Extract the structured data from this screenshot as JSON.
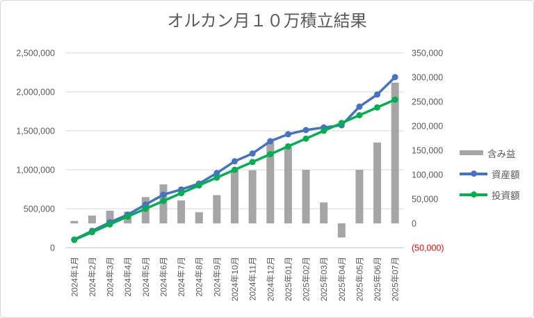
{
  "title": "オルカン月１０万積立結果",
  "chart_data": {
    "type": "combo",
    "title": "オルカン月１０万積立結果",
    "categories": [
      "2024年1月",
      "2024年2月",
      "2024年3月",
      "2024年4月",
      "2024年5月",
      "2024年6月",
      "2024年7月",
      "2024年8月",
      "2024年9月",
      "2024年10月",
      "2024年11月",
      "2024年12月",
      "2025年01月",
      "2025年02月",
      "2025年03月",
      "2025年04月",
      "2025年05月",
      "2025年06月",
      "2025年07月"
    ],
    "series": [
      {
        "name": "含み益",
        "type": "bar",
        "axis": "right",
        "color": "#a5a5a5",
        "values": [
          5000,
          16000,
          26000,
          24000,
          54000,
          80000,
          47000,
          23000,
          58000,
          109000,
          109000,
          167000,
          156000,
          110000,
          43000,
          -29000,
          110000,
          166000,
          289000
        ]
      },
      {
        "name": "資産額",
        "type": "line",
        "axis": "left",
        "color": "#4472c4",
        "values": [
          105000,
          216000,
          326000,
          424000,
          554000,
          680000,
          747000,
          823000,
          958000,
          1109000,
          1209000,
          1367000,
          1456000,
          1510000,
          1543000,
          1571000,
          1810000,
          1966000,
          2189000
        ]
      },
      {
        "name": "投資額",
        "type": "line",
        "axis": "left",
        "color": "#00b050",
        "values": [
          100000,
          200000,
          300000,
          400000,
          500000,
          600000,
          700000,
          800000,
          900000,
          1000000,
          1100000,
          1200000,
          1300000,
          1400000,
          1500000,
          1600000,
          1700000,
          1800000,
          1900000
        ]
      }
    ],
    "left_axis": {
      "min": 0,
      "max": 2500000,
      "step": 500000,
      "tick_labels": [
        "0",
        "500,000",
        "1,000,000",
        "1,500,000",
        "2,000,000",
        "2,500,000"
      ]
    },
    "right_axis": {
      "min": -50000,
      "max": 350000,
      "step": 50000,
      "tick_labels": [
        "(50,000)",
        "0",
        "50,000",
        "100,000",
        "150,000",
        "200,000",
        "250,000",
        "300,000",
        "350,000"
      ],
      "negative_tick_color": "#ff0000"
    },
    "grid": true,
    "legend_position": "right",
    "colors": {
      "text": "#595959",
      "gridline": "#d9d9d9",
      "axis_line": "#bfbfbf",
      "background": "#ffffff"
    }
  }
}
